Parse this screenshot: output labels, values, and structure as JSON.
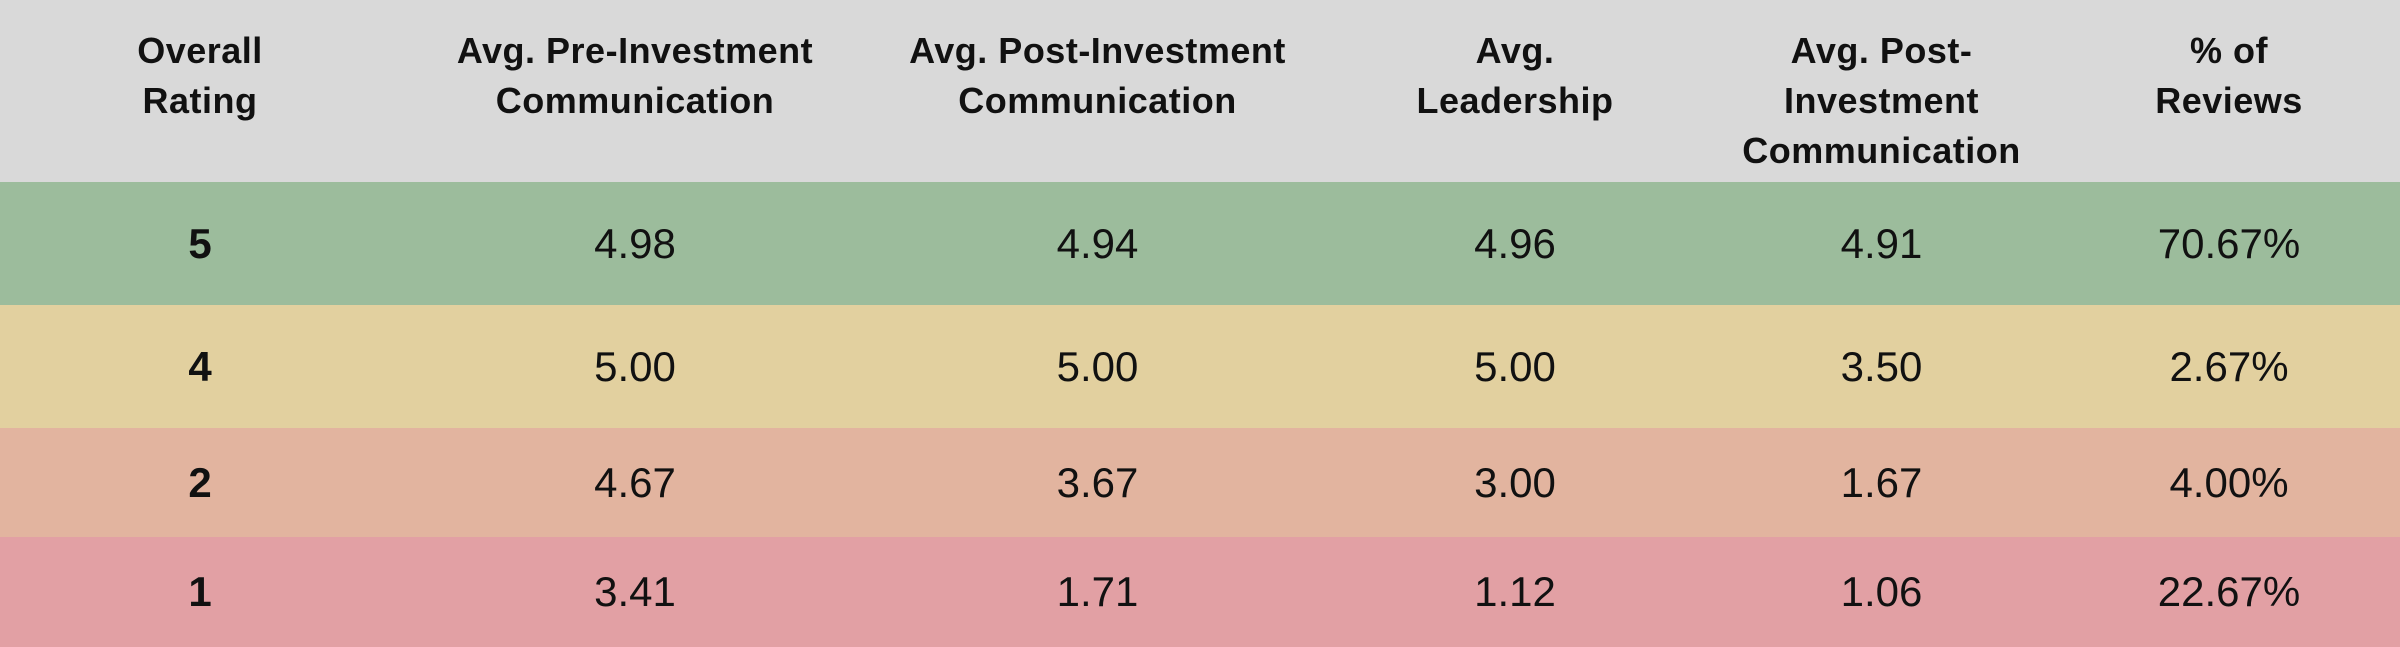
{
  "colors": {
    "header_bg": "#d9d9d9",
    "row_bg_rating_5": "#9cbc9c",
    "row_bg_rating_4": "#e2d09f",
    "row_bg_rating_2": "#e2b49f",
    "row_bg_rating_1": "#e2a0a4",
    "text": "#111111"
  },
  "table": {
    "columns": [
      {
        "label": "Overall\nRating"
      },
      {
        "label": "Avg. Pre-Investment\nCommunication"
      },
      {
        "label": "Avg. Post-Investment\nCommunication"
      },
      {
        "label": "Avg.\nLeadership"
      },
      {
        "label": "Avg. Post-Investment\nCommunication"
      },
      {
        "label": "% of\nReviews"
      }
    ],
    "rows": [
      {
        "cells": [
          "5",
          "4.98",
          "4.94",
          "4.96",
          "4.91",
          "70.67%"
        ]
      },
      {
        "cells": [
          "4",
          "5.00",
          "5.00",
          "5.00",
          "3.50",
          "2.67%"
        ]
      },
      {
        "cells": [
          "2",
          "4.67",
          "3.67",
          "3.00",
          "1.67",
          "4.00%"
        ]
      },
      {
        "cells": [
          "1",
          "3.41",
          "1.71",
          "1.12",
          "1.06",
          "22.67%"
        ]
      }
    ]
  },
  "chart_data": {
    "type": "table",
    "columns": [
      "Overall Rating",
      "Avg. Pre-Investment Communication",
      "Avg. Post-Investment Communication",
      "Avg. Leadership",
      "Avg. Post-Investment Communication",
      "% of Reviews"
    ],
    "rows": [
      [
        5,
        4.98,
        4.94,
        4.96,
        4.91,
        "70.67%"
      ],
      [
        4,
        5.0,
        5.0,
        5.0,
        3.5,
        "2.67%"
      ],
      [
        2,
        4.67,
        3.67,
        3.0,
        1.67,
        "4.00%"
      ],
      [
        1,
        3.41,
        1.71,
        1.12,
        1.06,
        "22.67%"
      ]
    ],
    "row_colors": [
      "#9cbc9c",
      "#e2d09f",
      "#e2b49f",
      "#e2a0a4"
    ],
    "legend_position": "none",
    "grid": false
  }
}
